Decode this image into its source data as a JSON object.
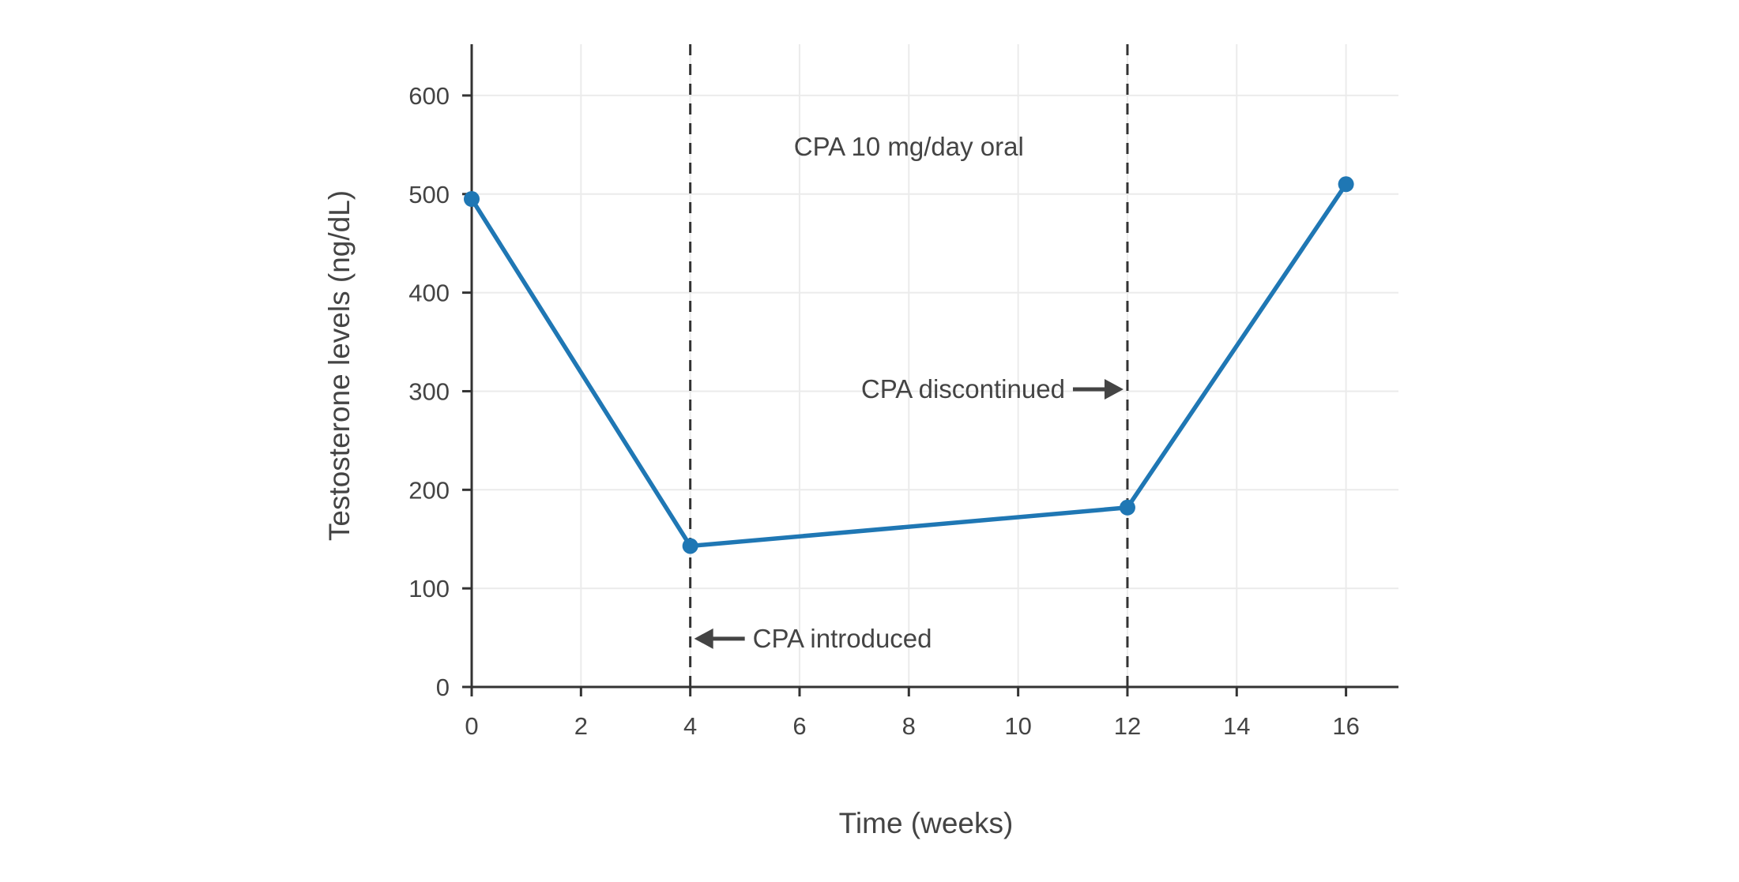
{
  "chart_data": {
    "type": "line",
    "title": "",
    "xlabel": "Time (weeks)",
    "ylabel": "Testosterone levels (ng/dL)",
    "series": [
      {
        "name": "Testosterone levels",
        "x": [
          0,
          4,
          12,
          16
        ],
        "y": [
          495,
          143,
          182,
          510
        ]
      }
    ],
    "x": [
      0,
      4,
      12,
      16
    ],
    "y": [
      495,
      143,
      182,
      510
    ],
    "xlim": [
      0,
      16.96
    ],
    "ylim": [
      0,
      652
    ],
    "xticks": [
      0,
      2,
      4,
      6,
      8,
      10,
      12,
      14,
      16
    ],
    "yticks": [
      0,
      100,
      200,
      300,
      400,
      500,
      600
    ],
    "grid": true,
    "legend": "none",
    "vlines": [
      {
        "x": 4,
        "style": "dashed"
      },
      {
        "x": 12,
        "style": "dashed"
      }
    ],
    "annotations": [
      {
        "text": "CPA 10 mg/day oral",
        "x": 8,
        "y": 548,
        "arrow": null
      },
      {
        "text": "CPA discontinued",
        "x": 12,
        "y": 302,
        "arrow": "right"
      },
      {
        "text": "CPA introduced",
        "x": 4,
        "y": 49,
        "arrow": "left"
      }
    ],
    "style": {
      "line_color": "#1f77b4",
      "marker_color": "#1f77b4",
      "vline_color": "#333333",
      "axis_color": "#333333",
      "tick_label_color": "#444444",
      "grid_color": "#ebebeb",
      "annotation_color": "#444444",
      "background": "#ffffff"
    }
  }
}
